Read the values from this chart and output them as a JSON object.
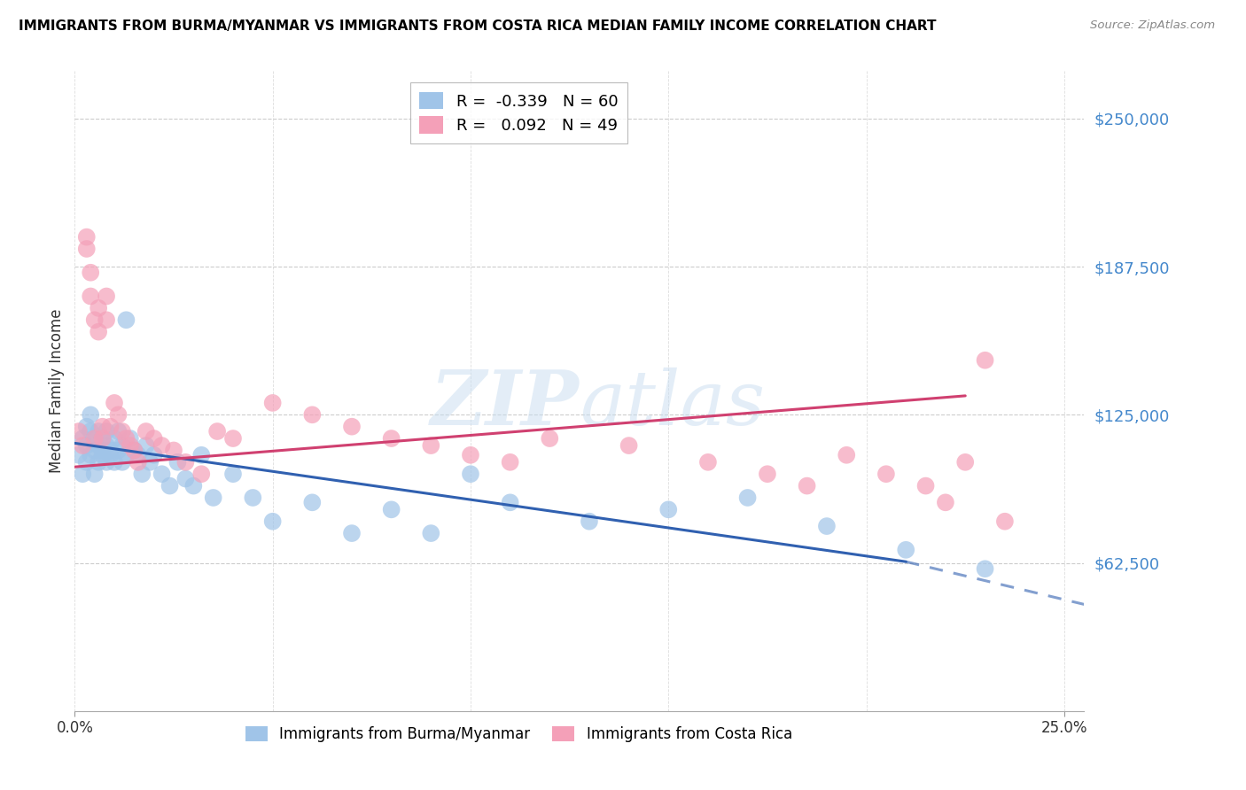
{
  "title": "IMMIGRANTS FROM BURMA/MYANMAR VS IMMIGRANTS FROM COSTA RICA MEDIAN FAMILY INCOME CORRELATION CHART",
  "source": "Source: ZipAtlas.com",
  "ylabel": "Median Family Income",
  "xlabel_ticks": [
    "0.0%",
    "25.0%"
  ],
  "xlabel_tick_vals": [
    0.0,
    0.25
  ],
  "ytick_labels": [
    "$62,500",
    "$125,000",
    "$187,500",
    "$250,000"
  ],
  "ytick_vals": [
    62500,
    125000,
    187500,
    250000
  ],
  "ylim": [
    0,
    270000
  ],
  "xlim": [
    0.0,
    0.255
  ],
  "legend_label1": "Immigrants from Burma/Myanmar",
  "legend_label2": "Immigrants from Costa Rica",
  "blue_color": "#a0c4e8",
  "pink_color": "#f4a0b8",
  "blue_line_color": "#3060b0",
  "pink_line_color": "#d04070",
  "blue_scatter_x": [
    0.001,
    0.002,
    0.002,
    0.003,
    0.003,
    0.003,
    0.004,
    0.004,
    0.004,
    0.005,
    0.005,
    0.005,
    0.006,
    0.006,
    0.006,
    0.007,
    0.007,
    0.007,
    0.008,
    0.008,
    0.008,
    0.009,
    0.009,
    0.01,
    0.01,
    0.011,
    0.011,
    0.012,
    0.012,
    0.013,
    0.013,
    0.014,
    0.015,
    0.016,
    0.017,
    0.018,
    0.019,
    0.02,
    0.022,
    0.024,
    0.026,
    0.028,
    0.03,
    0.032,
    0.035,
    0.04,
    0.045,
    0.05,
    0.06,
    0.07,
    0.08,
    0.09,
    0.1,
    0.11,
    0.13,
    0.15,
    0.17,
    0.19,
    0.21,
    0.23
  ],
  "blue_scatter_y": [
    108000,
    115000,
    100000,
    112000,
    120000,
    105000,
    118000,
    108000,
    125000,
    110000,
    115000,
    100000,
    112000,
    118000,
    105000,
    110000,
    108000,
    115000,
    112000,
    105000,
    118000,
    110000,
    108000,
    115000,
    105000,
    110000,
    118000,
    105000,
    112000,
    108000,
    165000,
    115000,
    110000,
    108000,
    100000,
    112000,
    105000,
    108000,
    100000,
    95000,
    105000,
    98000,
    95000,
    108000,
    90000,
    100000,
    90000,
    80000,
    88000,
    75000,
    85000,
    75000,
    100000,
    88000,
    80000,
    85000,
    90000,
    78000,
    68000,
    60000
  ],
  "pink_scatter_x": [
    0.001,
    0.002,
    0.003,
    0.003,
    0.004,
    0.004,
    0.005,
    0.005,
    0.006,
    0.006,
    0.007,
    0.007,
    0.008,
    0.008,
    0.009,
    0.01,
    0.011,
    0.012,
    0.013,
    0.014,
    0.015,
    0.016,
    0.018,
    0.02,
    0.022,
    0.025,
    0.028,
    0.032,
    0.036,
    0.04,
    0.05,
    0.06,
    0.07,
    0.08,
    0.09,
    0.1,
    0.11,
    0.12,
    0.14,
    0.16,
    0.175,
    0.185,
    0.195,
    0.205,
    0.215,
    0.22,
    0.225,
    0.23,
    0.235
  ],
  "pink_scatter_y": [
    118000,
    112000,
    200000,
    195000,
    185000,
    175000,
    165000,
    115000,
    170000,
    160000,
    120000,
    115000,
    175000,
    165000,
    120000,
    130000,
    125000,
    118000,
    115000,
    112000,
    110000,
    105000,
    118000,
    115000,
    112000,
    110000,
    105000,
    100000,
    118000,
    115000,
    130000,
    125000,
    120000,
    115000,
    112000,
    108000,
    105000,
    115000,
    112000,
    105000,
    100000,
    95000,
    108000,
    100000,
    95000,
    88000,
    105000,
    148000,
    80000
  ],
  "blue_line_x_start": 0.0,
  "blue_line_x_solid_end": 0.21,
  "blue_line_x_dashed_end": 0.255,
  "pink_line_x_start": 0.0,
  "pink_line_x_end": 0.225
}
